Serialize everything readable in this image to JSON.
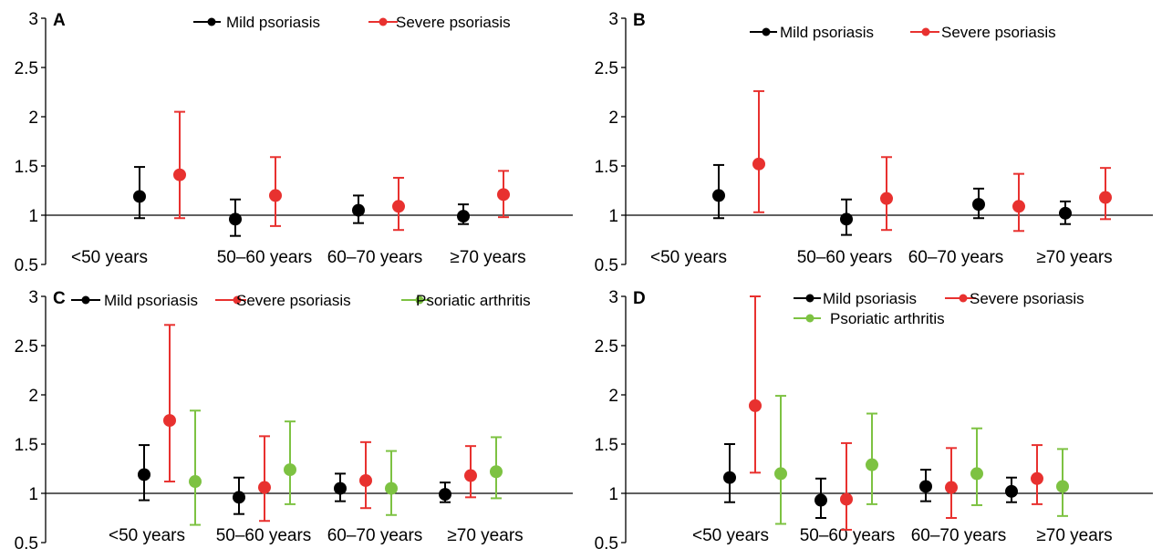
{
  "chart_data": [
    {
      "type": "scatter",
      "panel_label": "A",
      "categories": [
        "<50 years",
        "50–60 years",
        "60–70 years",
        "≥70 years"
      ],
      "ylim": [
        0.5,
        3
      ],
      "yticks": [
        {
          "v": 3,
          "t": "3"
        },
        {
          "v": 2.5,
          "t": "2.5"
        },
        {
          "v": 2,
          "t": "2"
        },
        {
          "v": 1.5,
          "t": "1.5"
        },
        {
          "v": 1,
          "t": "1"
        },
        {
          "v": 0.5,
          "t": "0.5"
        }
      ],
      "reference_line": 1,
      "legend_position": "top",
      "series": [
        {
          "name": "Mild psoriasis",
          "color": "#000000",
          "points": [
            {
              "y": 1.19,
              "lo": 0.97,
              "hi": 1.49
            },
            {
              "y": 0.96,
              "lo": 0.79,
              "hi": 1.16
            },
            {
              "y": 1.05,
              "lo": 0.92,
              "hi": 1.2
            },
            {
              "y": 0.99,
              "lo": 0.91,
              "hi": 1.11
            }
          ]
        },
        {
          "name": "Severe psoriasis",
          "color": "#e8312f",
          "points": [
            {
              "y": 1.41,
              "lo": 0.97,
              "hi": 2.05
            },
            {
              "y": 1.2,
              "lo": 0.89,
              "hi": 1.59
            },
            {
              "y": 1.09,
              "lo": 0.85,
              "hi": 1.38
            },
            {
              "y": 1.21,
              "lo": 0.98,
              "hi": 1.45
            }
          ]
        }
      ]
    },
    {
      "type": "scatter",
      "panel_label": "B",
      "categories": [
        "<50 years",
        "50–60 years",
        "60–70 years",
        "≥70 years"
      ],
      "ylim": [
        0.5,
        3
      ],
      "yticks": [
        {
          "v": 3,
          "t": "3"
        },
        {
          "v": 2.5,
          "t": "2.5"
        },
        {
          "v": 2,
          "t": "2"
        },
        {
          "v": 1.5,
          "t": "1.5"
        },
        {
          "v": 1,
          "t": "1"
        },
        {
          "v": 0.5,
          "t": "0.5"
        }
      ],
      "reference_line": 1,
      "legend_position": "top",
      "series": [
        {
          "name": "Mild psoriasis",
          "color": "#000000",
          "points": [
            {
              "y": 1.2,
              "lo": 0.97,
              "hi": 1.51
            },
            {
              "y": 0.96,
              "lo": 0.8,
              "hi": 1.16
            },
            {
              "y": 1.11,
              "lo": 0.97,
              "hi": 1.27
            },
            {
              "y": 1.02,
              "lo": 0.91,
              "hi": 1.14
            }
          ]
        },
        {
          "name": "Severe psoriasis",
          "color": "#e8312f",
          "points": [
            {
              "y": 1.52,
              "lo": 1.03,
              "hi": 2.26
            },
            {
              "y": 1.17,
              "lo": 0.85,
              "hi": 1.59
            },
            {
              "y": 1.09,
              "lo": 0.84,
              "hi": 1.42
            },
            {
              "y": 1.18,
              "lo": 0.96,
              "hi": 1.48
            }
          ]
        }
      ]
    },
    {
      "type": "scatter",
      "panel_label": "C",
      "categories": [
        "<50 years",
        "50–60 years",
        "60–70 years",
        "≥70 years"
      ],
      "ylim": [
        0.5,
        3
      ],
      "yticks": [
        {
          "v": 3,
          "t": "3"
        },
        {
          "v": 2.5,
          "t": "2.5"
        },
        {
          "v": 2,
          "t": "2"
        },
        {
          "v": 1.5,
          "t": "1.5"
        },
        {
          "v": 1,
          "t": "1"
        },
        {
          "v": 0.5,
          "t": "0.5"
        }
      ],
      "reference_line": 1,
      "legend_position": "top",
      "series": [
        {
          "name": "Mild psoriasis",
          "color": "#000000",
          "points": [
            {
              "y": 1.19,
              "lo": 0.93,
              "hi": 1.49
            },
            {
              "y": 0.96,
              "lo": 0.79,
              "hi": 1.16
            },
            {
              "y": 1.05,
              "lo": 0.92,
              "hi": 1.2
            },
            {
              "y": 0.99,
              "lo": 0.91,
              "hi": 1.11
            }
          ]
        },
        {
          "name": "Severe psoriasis",
          "color": "#e8312f",
          "points": [
            {
              "y": 1.74,
              "lo": 1.12,
              "hi": 2.71
            },
            {
              "y": 1.06,
              "lo": 0.72,
              "hi": 1.58
            },
            {
              "y": 1.13,
              "lo": 0.85,
              "hi": 1.52
            },
            {
              "y": 1.18,
              "lo": 0.96,
              "hi": 1.48
            }
          ]
        },
        {
          "name": "Psoriatic arthritis",
          "color": "#7dc242",
          "points": [
            {
              "y": 1.12,
              "lo": 0.68,
              "hi": 1.84
            },
            {
              "y": 1.24,
              "lo": 0.89,
              "hi": 1.73
            },
            {
              "y": 1.05,
              "lo": 0.78,
              "hi": 1.43
            },
            {
              "y": 1.22,
              "lo": 0.95,
              "hi": 1.57
            }
          ]
        }
      ]
    },
    {
      "type": "scatter",
      "panel_label": "D",
      "categories": [
        "<50 years",
        "50–60 years",
        "60–70 years",
        "≥70 years"
      ],
      "ylim": [
        0.5,
        3
      ],
      "yticks": [
        {
          "v": 3,
          "t": "3"
        },
        {
          "v": 2.5,
          "t": "2.5"
        },
        {
          "v": 2,
          "t": "2"
        },
        {
          "v": 1.5,
          "t": "1.5"
        },
        {
          "v": 1,
          "t": "1"
        },
        {
          "v": 0.5,
          "t": "0.5"
        }
      ],
      "reference_line": 1,
      "legend_position": "top",
      "series": [
        {
          "name": "Mild psoriasis",
          "color": "#000000",
          "points": [
            {
              "y": 1.16,
              "lo": 0.91,
              "hi": 1.5
            },
            {
              "y": 0.93,
              "lo": 0.75,
              "hi": 1.15
            },
            {
              "y": 1.07,
              "lo": 0.92,
              "hi": 1.24
            },
            {
              "y": 1.02,
              "lo": 0.91,
              "hi": 1.16
            }
          ]
        },
        {
          "name": "Severe psoriasis",
          "color": "#e8312f",
          "points": [
            {
              "y": 1.89,
              "lo": 1.21,
              "hi": 3.0
            },
            {
              "y": 0.94,
              "lo": 0.63,
              "hi": 1.51
            },
            {
              "y": 1.06,
              "lo": 0.75,
              "hi": 1.46
            },
            {
              "y": 1.15,
              "lo": 0.89,
              "hi": 1.49
            }
          ]
        },
        {
          "name": "Psoriatic arthritis",
          "color": "#7dc242",
          "points": [
            {
              "y": 1.2,
              "lo": 0.69,
              "hi": 1.99
            },
            {
              "y": 1.29,
              "lo": 0.89,
              "hi": 1.81
            },
            {
              "y": 1.2,
              "lo": 0.88,
              "hi": 1.66
            },
            {
              "y": 1.07,
              "lo": 0.77,
              "hi": 1.45
            }
          ]
        }
      ]
    }
  ]
}
